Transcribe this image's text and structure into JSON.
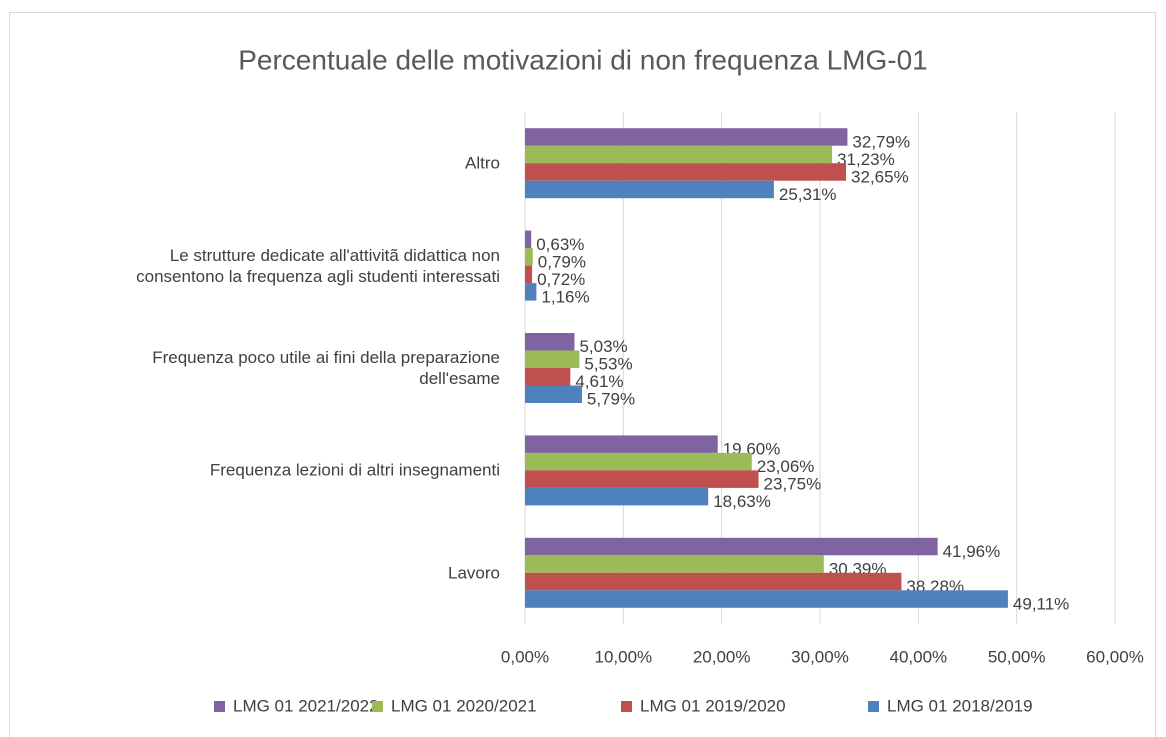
{
  "chart_data": {
    "type": "bar",
    "orientation": "horizontal",
    "title": "Percentuale delle motivazioni di non frequenza LMG-01",
    "categories": [
      "Altro",
      "Le strutture dedicate all'attivitã didattica non\nconsentono la frequenza agli studenti interessati",
      "Frequenza poco utile ai fini della preparazione\ndell'esame",
      "Frequenza lezioni di altri insegnamenti",
      "Lavoro"
    ],
    "series": [
      {
        "name": "LMG 01 2021/2022",
        "color": "#8064a2",
        "values": [
          32.79,
          0.63,
          5.03,
          19.6,
          41.96
        ],
        "value_labels": [
          "32,79%",
          "0,63%",
          "5,03%",
          "19,60%",
          "41,96%"
        ]
      },
      {
        "name": "LMG 01 2020/2021",
        "color": "#9bbb59",
        "values": [
          31.23,
          0.79,
          5.53,
          23.06,
          30.39
        ],
        "value_labels": [
          "31,23%",
          "0,79%",
          "5,53%",
          "23,06%",
          "30,39%"
        ]
      },
      {
        "name": "LMG 01 2019/2020",
        "color": "#c0504d",
        "values": [
          32.65,
          0.72,
          4.61,
          23.75,
          38.28
        ],
        "value_labels": [
          "32,65%",
          "0,72%",
          "4,61%",
          "23,75%",
          "38,28%"
        ]
      },
      {
        "name": "LMG 01 2018/2019",
        "color": "#4f81bd",
        "values": [
          25.31,
          1.16,
          5.79,
          18.63,
          49.11
        ],
        "value_labels": [
          "25,31%",
          "1,16%",
          "5,79%",
          "18,63%",
          "49,11%"
        ]
      }
    ],
    "xlim": [
      0,
      60
    ],
    "xticks": [
      {
        "value": 0,
        "label": "0,00%"
      },
      {
        "value": 10,
        "label": "10,00%"
      },
      {
        "value": 20,
        "label": "20,00%"
      },
      {
        "value": 30,
        "label": "30,00%"
      },
      {
        "value": 40,
        "label": "40,00%"
      },
      {
        "value": 50,
        "label": "50,00%"
      },
      {
        "value": 60,
        "label": "60,00%"
      }
    ],
    "grid": true,
    "legend": "bottom"
  }
}
